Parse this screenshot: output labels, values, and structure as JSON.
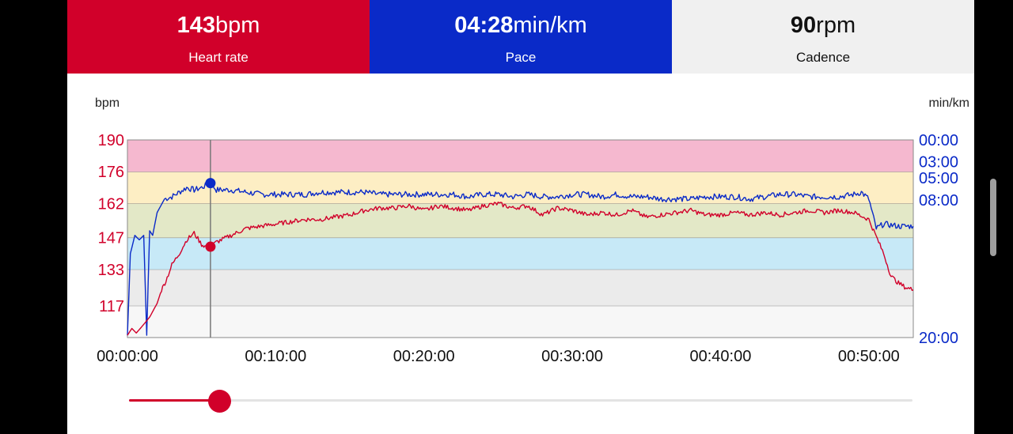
{
  "colors": {
    "heart_rate": "#d1002a",
    "pace": "#0a2ac8",
    "cadence_tile": "#f0f0f0",
    "zones": [
      "#f7f7f7",
      "#ebebeb",
      "#c7e9f7",
      "#e3e8c7",
      "#fdeec4",
      "#f5b8cf"
    ]
  },
  "tiles": [
    {
      "value": "143",
      "unit": "bpm",
      "label": "Heart rate",
      "bg": "#d1002a"
    },
    {
      "value": "04:28",
      "unit": "min/km",
      "label": "Pace",
      "bg": "#0a2ac8"
    },
    {
      "value": "90",
      "unit": "rpm",
      "label": "Cadence",
      "bg": "#f0f0f0"
    }
  ],
  "chart_data": {
    "type": "line",
    "left_axis_label": "bpm",
    "right_axis_label": "min/km",
    "left_ticks": [
      "190",
      "176",
      "162",
      "147",
      "133",
      "117"
    ],
    "left_tick_values": [
      190,
      176,
      162,
      147,
      133,
      117
    ],
    "right_ticks": [
      "00:00",
      "03:00",
      "05:00",
      "08:00",
      "20:00"
    ],
    "x_ticks": [
      "00:00:00",
      "00:10:00",
      "00:20:00",
      "00:30:00",
      "00:40:00",
      "00:50:00"
    ],
    "x_range_minutes": [
      0,
      53
    ],
    "zone_bounds_bpm": [
      103,
      117,
      133,
      147,
      162,
      176,
      190
    ],
    "cursor_minute": 5.6,
    "cursor_heart_rate": 143,
    "cursor_pace": "04:28",
    "series": [
      {
        "axis": "left",
        "x": [
          0,
          0.3,
          0.6,
          1,
          1.5,
          2,
          2.3,
          2.6,
          3,
          3.5,
          4,
          4.5,
          5,
          5.3,
          5.6,
          6,
          7,
          8,
          9,
          10,
          11,
          12,
          13,
          14,
          15,
          16,
          17,
          18,
          19,
          20,
          21,
          22,
          23,
          24,
          25,
          26,
          27,
          28,
          29,
          30,
          31,
          32,
          33,
          34,
          35,
          36,
          37,
          38,
          39,
          40,
          41,
          42,
          43,
          44,
          45,
          46,
          47,
          48,
          49,
          50,
          51,
          51.5,
          52,
          52.5,
          53
        ],
        "values": [
          104,
          107,
          105,
          108,
          112,
          118,
          124,
          128,
          135,
          140,
          146,
          149,
          144,
          143,
          143,
          145,
          148,
          151,
          152,
          153,
          154,
          155,
          155,
          156,
          157,
          159,
          160,
          160,
          161,
          159,
          161,
          160,
          159,
          161,
          162,
          160,
          161,
          157,
          160,
          159,
          157,
          158,
          157,
          159,
          156,
          157,
          158,
          159,
          157,
          157,
          158,
          157,
          158,
          157,
          158,
          159,
          158,
          159,
          158,
          155,
          140,
          130,
          127,
          125,
          124
        ]
      },
      {
        "axis": "right",
        "x": [
          0,
          0.2,
          0.5,
          0.8,
          1.1,
          1.3,
          1.5,
          1.7,
          2,
          2.5,
          3,
          3.5,
          4,
          4.5,
          5,
          5.6,
          6,
          7,
          8,
          9,
          10,
          11,
          12,
          13,
          14,
          15,
          16,
          17,
          18,
          19,
          20,
          21,
          22,
          23,
          24,
          25,
          26,
          27,
          28,
          29,
          30,
          31,
          32,
          33,
          34,
          35,
          36,
          37,
          38,
          39,
          40,
          41,
          42,
          43,
          44,
          45,
          46,
          47,
          48,
          49,
          49.5,
          50,
          50.5,
          51,
          52,
          53
        ],
        "values": [
          104,
          140,
          148,
          146,
          148,
          104,
          150,
          148,
          158,
          164,
          165,
          167,
          169,
          168,
          169,
          171,
          168,
          168,
          167,
          166,
          166,
          166,
          166,
          167,
          167,
          167,
          167,
          166,
          166,
          166,
          166,
          166,
          166,
          165,
          166,
          166,
          165,
          166,
          165,
          165,
          166,
          166,
          165,
          166,
          165,
          165,
          164,
          164,
          164,
          165,
          165,
          165,
          164,
          165,
          166,
          166,
          165,
          165,
          165,
          166,
          167,
          164,
          151,
          153,
          152,
          152
        ]
      }
    ]
  }
}
